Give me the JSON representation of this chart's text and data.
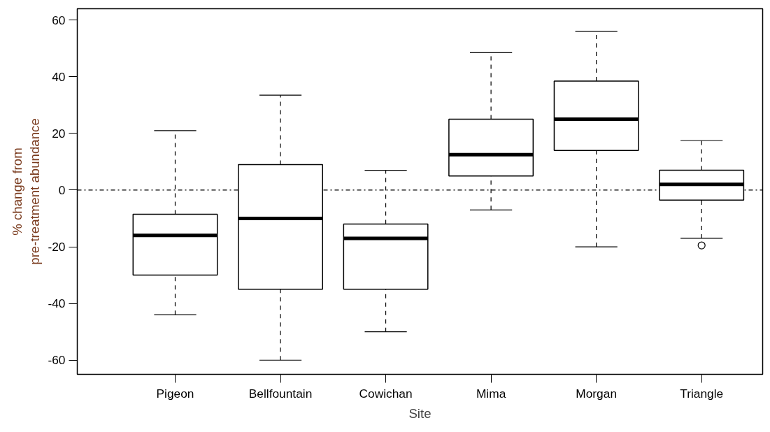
{
  "chart_data": {
    "type": "box",
    "xlabel": "Site",
    "ylabel": "% change from\npre-treatment abundance",
    "categories": [
      "Pigeon",
      "Bellfountain",
      "Cowichan",
      "Mima",
      "Morgan",
      "Triangle"
    ],
    "boxes": [
      {
        "low": -44,
        "q1": -30,
        "median": -16,
        "q3": -8.5,
        "high": 21
      },
      {
        "low": -60,
        "q1": -35,
        "median": -10,
        "q3": 9,
        "high": 33.5
      },
      {
        "low": -50,
        "q1": -35,
        "median": -17,
        "q3": -12,
        "high": 7
      },
      {
        "low": -7,
        "q1": 5,
        "median": 12.5,
        "q3": 25,
        "high": 48.5
      },
      {
        "low": -20,
        "q1": 14,
        "median": 25,
        "q3": 38.5,
        "high": 56
      },
      {
        "low": -17,
        "q1": -3.5,
        "median": 2,
        "q3": 7,
        "high": 17.5,
        "outliers": [
          -19.5
        ]
      }
    ],
    "ylim": [
      -65,
      64
    ],
    "yticks": [
      -60,
      -40,
      -20,
      0,
      20,
      40,
      60
    ],
    "ref_lines": [
      {
        "axis": "y",
        "value": 0,
        "line_style": "dashdot",
        "color": "#000000"
      }
    ],
    "grid": false
  }
}
